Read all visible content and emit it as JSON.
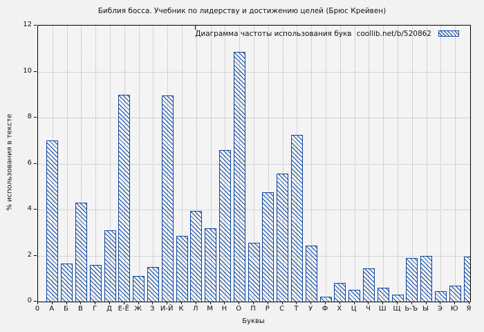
{
  "colors": {
    "bar": "#0d47a1",
    "grid": "#b3b3b3",
    "page_background": "#f2f2f2",
    "plot_background": "#f4f4f4",
    "frame": "#000000",
    "text": "#111111"
  },
  "chart_data": {
    "type": "bar",
    "title": "Библия босса. Учебник по лидерству и достижению целей (Брюс Крейвен)",
    "categories": [
      "А",
      "Б",
      "В",
      "Г",
      "Д",
      "Е-Ё",
      "Ж",
      "З",
      "И-Й",
      "К",
      "Л",
      "М",
      "Н",
      "О",
      "П",
      "Р",
      "С",
      "Т",
      "У",
      "Ф",
      "Х",
      "Ц",
      "Ч",
      "Ш",
      "Щ",
      "Ь-Ъ",
      "Ы",
      "Э",
      "Ю",
      "Я"
    ],
    "values": [
      7.0,
      1.65,
      4.3,
      1.6,
      3.1,
      9.0,
      1.1,
      1.5,
      8.95,
      2.85,
      3.95,
      3.2,
      6.6,
      10.85,
      2.55,
      4.75,
      5.55,
      7.25,
      2.45,
      0.2,
      0.8,
      0.5,
      1.45,
      0.6,
      0.3,
      1.9,
      2.0,
      0.45,
      0.7,
      1.95
    ],
    "xlabel": "Буквы",
    "ylabel": "% использования в тексте",
    "x_origin_tick_label": "0",
    "ylim": [
      0,
      12
    ],
    "yticks": [
      0,
      2,
      4,
      6,
      8,
      10,
      12
    ],
    "grid": true,
    "bar_style": "diagonal-hatch",
    "legend": {
      "label": "Диаграмма частоты использования букв",
      "url": "coollib.net/b/520862",
      "position": "top-right"
    }
  }
}
